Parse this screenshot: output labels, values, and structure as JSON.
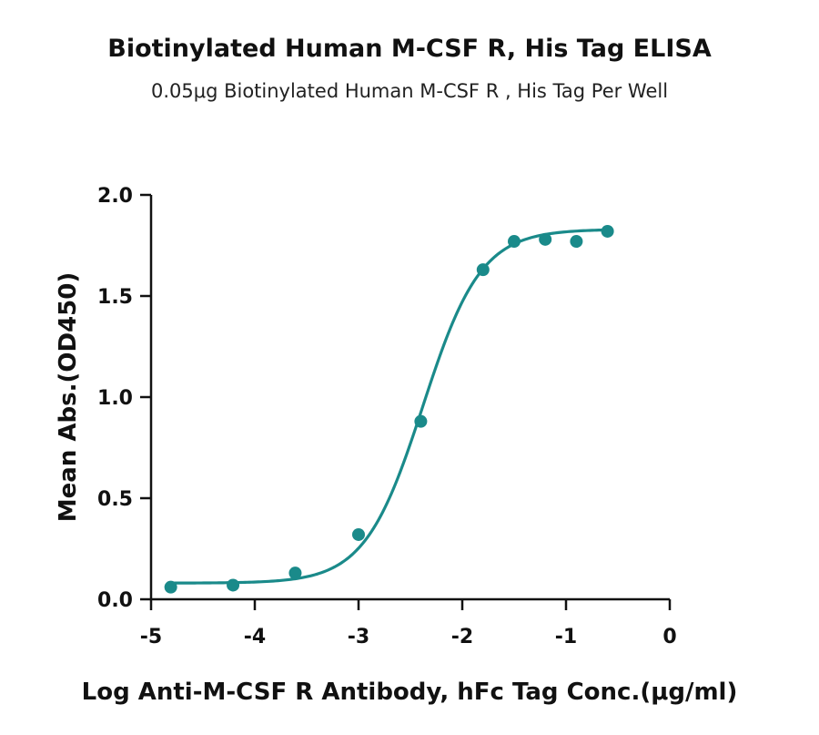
{
  "chart_data": {
    "type": "scatter",
    "title": "Biotinylated Human M-CSF R, His Tag ELISA",
    "subtitle": "0.05μg Biotinylated Human M-CSF R , His Tag Per Well",
    "xlabel": "Log  Anti-M-CSF R Antibody, hFc Tag Conc.(μg/ml)",
    "ylabel": "Mean Abs.(OD450)",
    "xlim": [
      -5,
      0
    ],
    "ylim": [
      0,
      2.0
    ],
    "x_ticks": [
      -5,
      -4,
      -3,
      -2,
      -1,
      0
    ],
    "x_tick_labels": [
      "-5",
      "-4",
      "-3",
      "-2",
      "-1",
      "0"
    ],
    "y_ticks": [
      0,
      0.5,
      1.0,
      1.5,
      2.0
    ],
    "y_tick_labels": [
      "0.0",
      "0.5",
      "1.0",
      "1.5",
      "2.0"
    ],
    "grid": false,
    "color": "#1a8a8a",
    "series": [
      {
        "x": [
          -4.81,
          -4.21,
          -3.61,
          -3.0,
          -2.4,
          -1.8,
          -1.5,
          -1.2,
          -0.9,
          -0.6
        ],
        "y": [
          0.06,
          0.07,
          0.13,
          0.32,
          0.88,
          1.63,
          1.77,
          1.78,
          1.77,
          1.82
        ]
      }
    ],
    "fit": {
      "model": "4PL",
      "bottom": 0.08,
      "top": 1.83,
      "logEC50": -2.38,
      "hill": 1.55
    }
  }
}
